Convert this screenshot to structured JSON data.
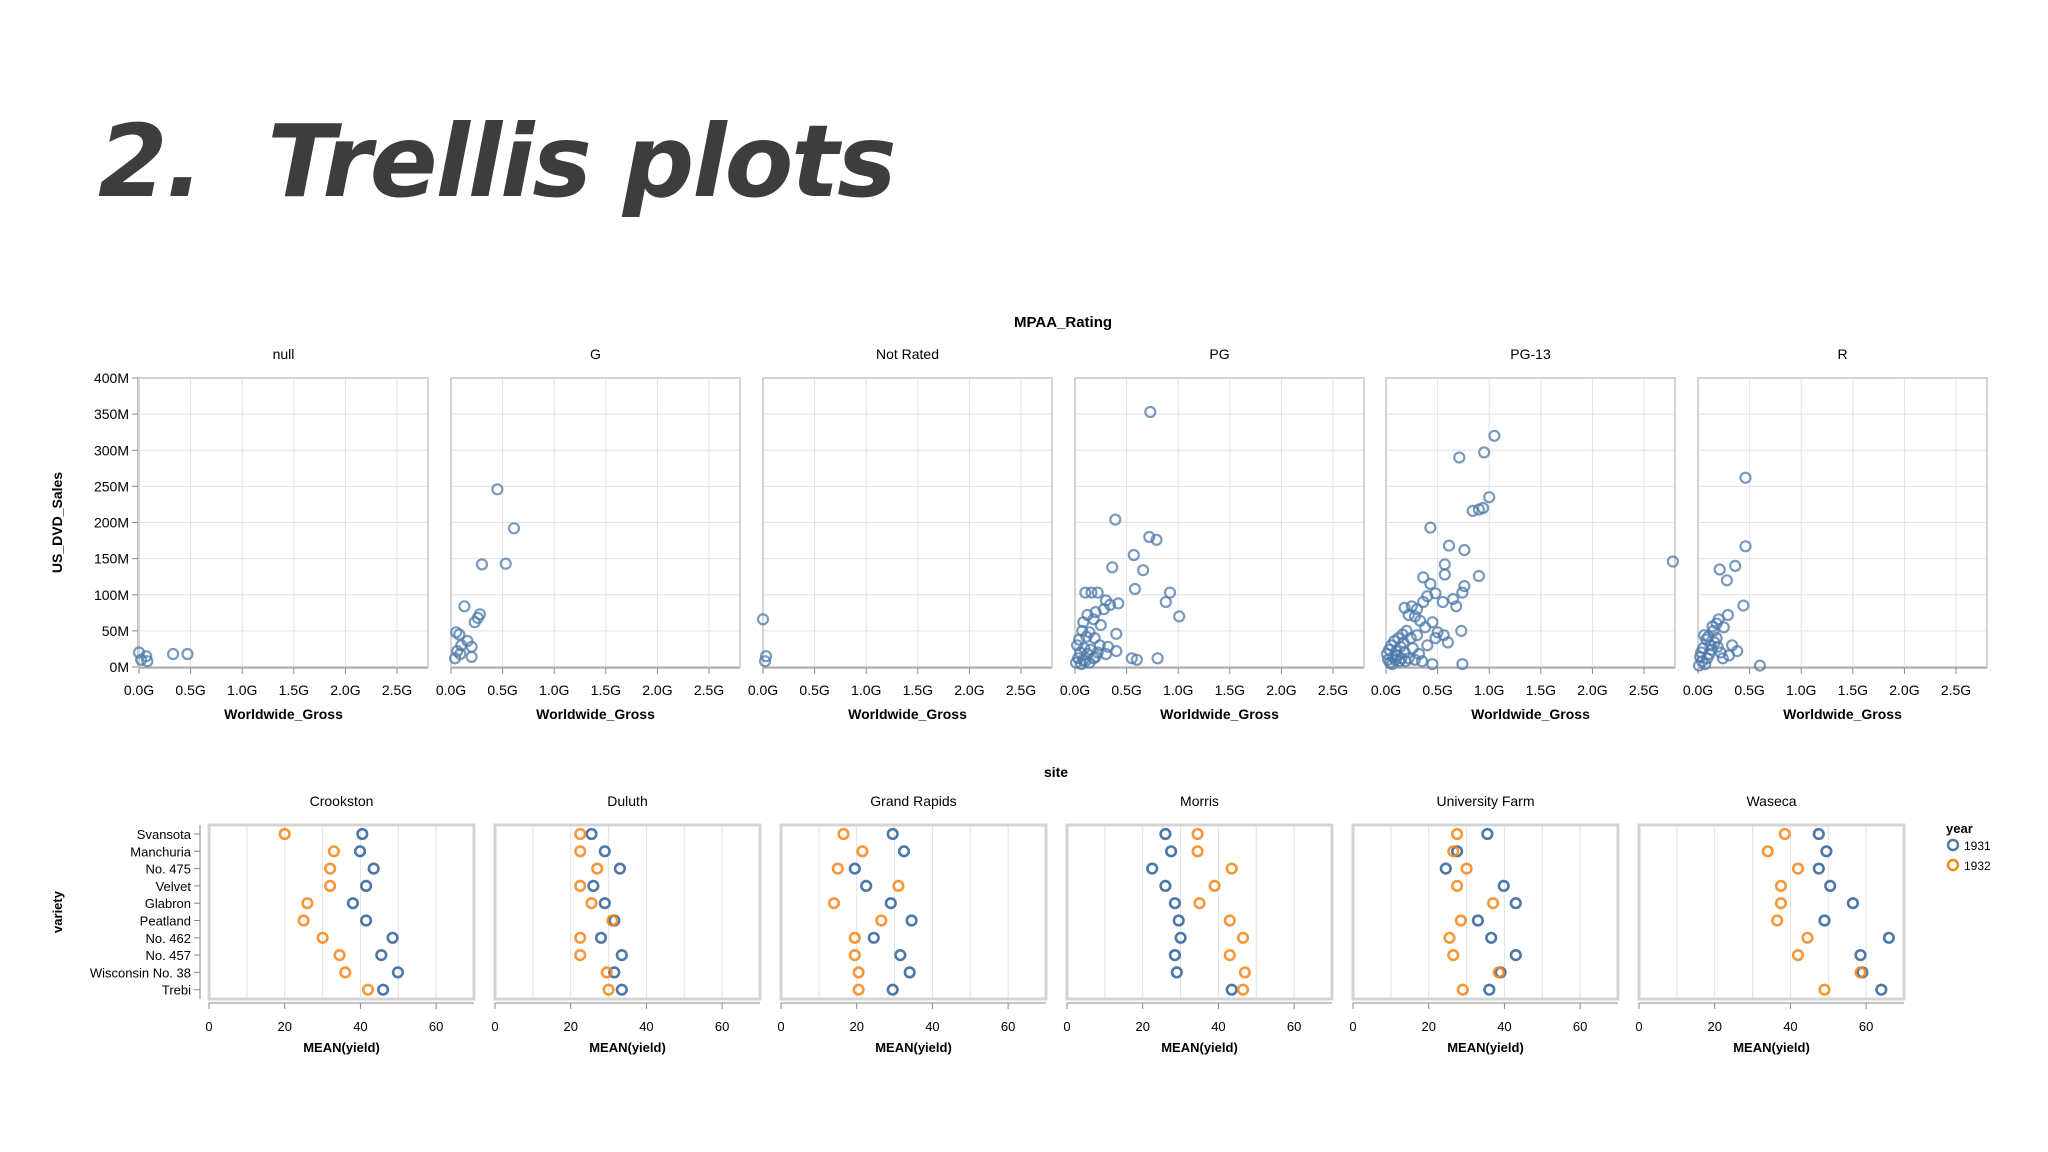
{
  "slide": {
    "title": "2.  Trellis plots"
  },
  "chart_data": [
    {
      "type": "scatter",
      "facet_title": "MPAA_Rating",
      "xlabel": "Worldwide_Gross",
      "ylabel": "US_DVD_Sales",
      "xlim": [
        0,
        2800000000
      ],
      "ylim": [
        0,
        400000000
      ],
      "x_ticks": [
        "0.0G",
        "0.5G",
        "1.0G",
        "1.5G",
        "2.0G",
        "2.5G"
      ],
      "y_ticks": [
        "0M",
        "50M",
        "100M",
        "150M",
        "200M",
        "250M",
        "300M",
        "350M",
        "400M"
      ],
      "grid": true,
      "color": "#4c78a8",
      "facets": [
        {
          "name": "null",
          "points": [
            [
              0.0,
              20
            ],
            [
              0.02,
              10
            ],
            [
              0.07,
              15
            ],
            [
              0.33,
              18
            ],
            [
              0.47,
              18
            ],
            [
              0.08,
              8
            ]
          ]
        },
        {
          "name": "G",
          "points": [
            [
              0.45,
              246
            ],
            [
              0.61,
              192
            ],
            [
              0.53,
              143
            ],
            [
              0.3,
              142
            ],
            [
              0.13,
              84
            ],
            [
              0.28,
              73
            ],
            [
              0.26,
              68
            ],
            [
              0.23,
              62
            ],
            [
              0.05,
              48
            ],
            [
              0.08,
              45
            ],
            [
              0.16,
              36
            ],
            [
              0.1,
              30
            ],
            [
              0.2,
              28
            ],
            [
              0.06,
              22
            ],
            [
              0.09,
              18
            ],
            [
              0.2,
              14
            ],
            [
              0.04,
              12
            ]
          ]
        },
        {
          "name": "Not Rated",
          "points": [
            [
              0.0,
              66
            ],
            [
              0.03,
              15
            ],
            [
              0.02,
              8
            ]
          ]
        },
        {
          "name": "PG",
          "points": [
            [
              0.73,
              353
            ],
            [
              0.39,
              204
            ],
            [
              0.72,
              180
            ],
            [
              0.79,
              176
            ],
            [
              0.57,
              155
            ],
            [
              0.36,
              138
            ],
            [
              0.66,
              134
            ],
            [
              0.58,
              108
            ],
            [
              0.92,
              103
            ],
            [
              0.88,
              90
            ],
            [
              1.01,
              70
            ],
            [
              0.1,
              103
            ],
            [
              0.16,
              103
            ],
            [
              0.22,
              103
            ],
            [
              0.3,
              92
            ],
            [
              0.28,
              80
            ],
            [
              0.34,
              86
            ],
            [
              0.42,
              88
            ],
            [
              0.2,
              76
            ],
            [
              0.12,
              72
            ],
            [
              0.18,
              66
            ],
            [
              0.08,
              62
            ],
            [
              0.25,
              58
            ],
            [
              0.4,
              46
            ],
            [
              0.14,
              48
            ],
            [
              0.07,
              50
            ],
            [
              0.04,
              38
            ],
            [
              0.11,
              42
            ],
            [
              0.19,
              40
            ],
            [
              0.24,
              30
            ],
            [
              0.32,
              28
            ],
            [
              0.02,
              30
            ],
            [
              0.09,
              26
            ],
            [
              0.15,
              24
            ],
            [
              0.05,
              20
            ],
            [
              0.12,
              18
            ],
            [
              0.2,
              14
            ],
            [
              0.03,
              12
            ],
            [
              0.08,
              10
            ],
            [
              0.01,
              6
            ],
            [
              0.06,
              4
            ],
            [
              0.14,
              6
            ],
            [
              0.55,
              12
            ],
            [
              0.6,
              10
            ],
            [
              0.8,
              12
            ],
            [
              0.4,
              22
            ],
            [
              0.3,
              18
            ],
            [
              0.22,
              20
            ],
            [
              0.1,
              8
            ],
            [
              0.18,
              12
            ]
          ]
        },
        {
          "name": "PG-13",
          "points": [
            [
              1.05,
              320
            ],
            [
              0.95,
              297
            ],
            [
              0.71,
              290
            ],
            [
              1.0,
              235
            ],
            [
              0.94,
              220
            ],
            [
              0.9,
              218
            ],
            [
              0.84,
              216
            ],
            [
              0.43,
              193
            ],
            [
              0.61,
              168
            ],
            [
              0.76,
              162
            ],
            [
              0.57,
              142
            ],
            [
              0.9,
              126
            ],
            [
              0.36,
              124
            ],
            [
              0.57,
              128
            ],
            [
              0.43,
              115
            ],
            [
              0.76,
              112
            ],
            [
              0.74,
              103
            ],
            [
              0.48,
              102
            ],
            [
              0.4,
              98
            ],
            [
              0.65,
              94
            ],
            [
              0.55,
              90
            ],
            [
              0.68,
              84
            ],
            [
              0.36,
              90
            ],
            [
              0.3,
              80
            ],
            [
              0.25,
              84
            ],
            [
              0.18,
              82
            ],
            [
              0.22,
              72
            ],
            [
              0.28,
              70
            ],
            [
              0.33,
              64
            ],
            [
              0.45,
              62
            ],
            [
              0.38,
              55
            ],
            [
              0.5,
              48
            ],
            [
              0.56,
              44
            ],
            [
              0.73,
              50
            ],
            [
              0.6,
              34
            ],
            [
              0.48,
              40
            ],
            [
              0.4,
              30
            ],
            [
              0.3,
              44
            ],
            [
              0.24,
              40
            ],
            [
              0.2,
              50
            ],
            [
              0.16,
              45
            ],
            [
              0.12,
              40
            ],
            [
              0.08,
              36
            ],
            [
              0.05,
              30
            ],
            [
              0.03,
              24
            ],
            [
              0.01,
              18
            ],
            [
              0.02,
              10
            ],
            [
              0.04,
              6
            ],
            [
              0.07,
              14
            ],
            [
              0.1,
              22
            ],
            [
              0.14,
              28
            ],
            [
              0.18,
              20
            ],
            [
              0.22,
              12
            ],
            [
              0.26,
              26
            ],
            [
              0.32,
              18
            ],
            [
              0.06,
              4
            ],
            [
              0.09,
              10
            ],
            [
              0.11,
              16
            ],
            [
              0.13,
              8
            ],
            [
              0.15,
              12
            ],
            [
              0.17,
              34
            ],
            [
              0.19,
              8
            ],
            [
              0.35,
              8
            ],
            [
              0.28,
              10
            ],
            [
              2.78,
              146
            ],
            [
              0.74,
              4
            ],
            [
              0.45,
              4
            ]
          ]
        },
        {
          "name": "R",
          "points": [
            [
              0.46,
              262
            ],
            [
              0.46,
              167
            ],
            [
              0.36,
              140
            ],
            [
              0.21,
              135
            ],
            [
              0.28,
              120
            ],
            [
              0.44,
              85
            ],
            [
              0.29,
              72
            ],
            [
              0.2,
              66
            ],
            [
              0.25,
              55
            ],
            [
              0.15,
              50
            ],
            [
              0.1,
              42
            ],
            [
              0.08,
              38
            ],
            [
              0.12,
              30
            ],
            [
              0.05,
              26
            ],
            [
              0.03,
              20
            ],
            [
              0.02,
              14
            ],
            [
              0.04,
              8
            ],
            [
              0.07,
              4
            ],
            [
              0.01,
              2
            ],
            [
              0.09,
              12
            ],
            [
              0.11,
              18
            ],
            [
              0.13,
              24
            ],
            [
              0.16,
              34
            ],
            [
              0.18,
              40
            ],
            [
              0.19,
              28
            ],
            [
              0.22,
              20
            ],
            [
              0.24,
              12
            ],
            [
              0.3,
              16
            ],
            [
              0.33,
              30
            ],
            [
              0.38,
              22
            ],
            [
              0.14,
              56
            ],
            [
              0.06,
              44
            ],
            [
              0.18,
              60
            ],
            [
              0.6,
              2
            ]
          ]
        }
      ]
    },
    {
      "type": "scatter",
      "facet_title": "site",
      "xlabel": "MEAN(yield)",
      "ylabel": "variety",
      "xlim": [
        0,
        70
      ],
      "x_ticks": [
        "0",
        "20",
        "40",
        "60"
      ],
      "categories": [
        "Svansota",
        "Manchuria",
        "No. 475",
        "Velvet",
        "Glabron",
        "Peatland",
        "No. 462",
        "No. 457",
        "Wisconsin No. 38",
        "Trebi"
      ],
      "legend": {
        "title": "year",
        "position": "right"
      },
      "series": [
        {
          "name": "1931",
          "color": "#4c78a8"
        },
        {
          "name": "1932",
          "color": "#f58518"
        }
      ],
      "facets": [
        {
          "name": "Crookston",
          "v1931": [
            40.5,
            39.9,
            43.5,
            41.5,
            38.0,
            41.5,
            48.5,
            45.5,
            49.9,
            46.0
          ],
          "v1932": [
            20.0,
            33.0,
            32.0,
            32.0,
            26.0,
            25.0,
            30.0,
            34.5,
            36.0,
            42.0
          ]
        },
        {
          "name": "Duluth",
          "v1931": [
            25.5,
            29.0,
            33.0,
            26.0,
            29.0,
            31.5,
            28.0,
            33.5,
            31.5,
            33.5
          ],
          "v1932": [
            22.5,
            22.5,
            27.0,
            22.5,
            25.5,
            31.0,
            22.5,
            22.5,
            29.5,
            30.0
          ]
        },
        {
          "name": "Grand Rapids",
          "v1931": [
            29.5,
            32.5,
            19.5,
            22.5,
            29.0,
            34.5,
            24.5,
            31.5,
            34.0,
            29.5
          ],
          "v1932": [
            16.5,
            21.5,
            15.0,
            31.0,
            14.0,
            26.5,
            19.5,
            19.5,
            20.5,
            20.5
          ]
        },
        {
          "name": "Morris",
          "v1931": [
            26.0,
            27.5,
            22.5,
            26.0,
            28.5,
            29.5,
            30.0,
            28.5,
            29.0,
            43.5
          ],
          "v1932": [
            34.5,
            34.5,
            43.5,
            39.0,
            35.0,
            43.0,
            46.5,
            43.0,
            47.0,
            46.5
          ]
        },
        {
          "name": "University Farm",
          "v1931": [
            35.5,
            27.5,
            24.5,
            39.8,
            43.0,
            33.0,
            36.5,
            43.0,
            39.0,
            36.0
          ],
          "v1932": [
            27.5,
            26.5,
            30.0,
            27.5,
            37.0,
            28.5,
            25.5,
            26.5,
            38.5,
            29.0
          ]
        },
        {
          "name": "Waseca",
          "v1931": [
            47.5,
            49.5,
            47.5,
            50.5,
            56.5,
            49.0,
            66.0,
            58.5,
            59.0,
            64.0
          ],
          "v1932": [
            38.5,
            34.0,
            42.0,
            37.5,
            37.5,
            36.5,
            44.5,
            42.0,
            58.5,
            49.0
          ]
        }
      ]
    }
  ]
}
